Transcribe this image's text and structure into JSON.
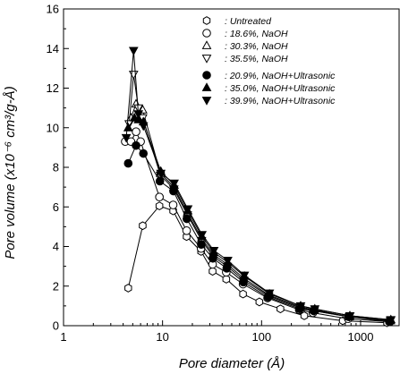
{
  "chart_data": {
    "type": "scatter",
    "xlabel": "Pore diameter (Å)",
    "ylabel": "Pore volume (x10⁻⁶ cm³/g-Å)",
    "xscale": "log",
    "xlim": [
      1,
      2500
    ],
    "ylim": [
      0,
      16
    ],
    "xticks": [
      1,
      10,
      100,
      1000
    ],
    "xtick_labels": [
      "1",
      "10",
      "100",
      "1000"
    ],
    "yticks": [
      0,
      2,
      4,
      6,
      8,
      10,
      12,
      14,
      16
    ],
    "ytick_labels": [
      "0",
      "2",
      "4",
      "6",
      "8",
      "10",
      "12",
      "14",
      "16"
    ],
    "grid": false,
    "legend_position": "top-right",
    "series": [
      {
        "name": ": Untreated",
        "marker": "hexagon-open",
        "x": [
          4.5,
          6.3,
          9.3,
          12.8,
          17.5,
          24.5,
          32,
          44,
          65,
          95,
          155,
          270,
          660,
          1850
        ],
        "y": [
          1.9,
          5.05,
          6.05,
          5.8,
          4.5,
          3.75,
          2.75,
          2.35,
          1.6,
          1.2,
          0.85,
          0.5,
          0.25,
          0.15
        ]
      },
      {
        "name": ": 18.6%, NaOH",
        "marker": "circle-open",
        "x": [
          4.2,
          4.8,
          5.4,
          6.0,
          9.3,
          12.8,
          17.5,
          24.5,
          32,
          44,
          65,
          115,
          240,
          330,
          750,
          1950
        ],
        "y": [
          9.3,
          9.3,
          9.8,
          9.3,
          6.5,
          6.1,
          4.8,
          3.9,
          3.1,
          2.7,
          2.1,
          1.4,
          0.8,
          0.65,
          0.35,
          0.2
        ]
      },
      {
        "name": ": 30.3%, NaOH",
        "marker": "triangle-up-open",
        "x": [
          4.8,
          5.4,
          6.3,
          9.5,
          13,
          17.8,
          24.8,
          32.5,
          45,
          66,
          118,
          245,
          340,
          770,
          2000
        ],
        "y": [
          10.5,
          11.2,
          10.9,
          7.7,
          7.0,
          5.7,
          4.4,
          3.6,
          3.1,
          2.4,
          1.55,
          0.95,
          0.8,
          0.45,
          0.25
        ]
      },
      {
        "name": ": 35.5%, NaOH",
        "marker": "triangle-down-open",
        "x": [
          4.6,
          5.1,
          5.7,
          6.3,
          9.5,
          13,
          17.8,
          24.8,
          32.5,
          45,
          66,
          118,
          245,
          340,
          770,
          2000
        ],
        "y": [
          10.2,
          12.7,
          11.0,
          10.5,
          7.6,
          6.9,
          5.6,
          4.3,
          3.5,
          3.0,
          2.3,
          1.5,
          0.9,
          0.75,
          0.45,
          0.25
        ]
      },
      {
        "name": ": 20.9%, NaOH+Ultrasonic",
        "marker": "circle-filled",
        "x": [
          4.5,
          5.4,
          6.4,
          9.4,
          12.9,
          17.6,
          24.6,
          32.2,
          44.5,
          65.5,
          116,
          242,
          335,
          760,
          1980
        ],
        "y": [
          8.2,
          9.1,
          8.7,
          7.3,
          6.8,
          5.4,
          4.1,
          3.4,
          2.9,
          2.2,
          1.45,
          0.85,
          0.75,
          0.45,
          0.2
        ]
      },
      {
        "name": ": 35.0%, NaOH+Ultrasonic",
        "marker": "triangle-up-filled",
        "x": [
          4.5,
          5.2,
          5.7,
          6.4,
          9.6,
          13.1,
          18,
          25,
          33,
          45.5,
          67,
          120,
          248,
          345,
          780,
          2020
        ],
        "y": [
          10.0,
          10.5,
          10.4,
          10.3,
          7.8,
          7.1,
          5.8,
          4.5,
          3.7,
          3.2,
          2.5,
          1.6,
          1.0,
          0.85,
          0.5,
          0.3
        ]
      },
      {
        "name": ": 39.9%, NaOH+Ultrasonic",
        "marker": "triangle-down-filled",
        "x": [
          4.3,
          5.1,
          5.7,
          6.4,
          9.6,
          13.1,
          18,
          25,
          33,
          45.5,
          67,
          120,
          248,
          345,
          780,
          2020
        ],
        "y": [
          9.5,
          13.9,
          10.7,
          10.1,
          7.7,
          7.2,
          5.9,
          4.6,
          3.8,
          3.3,
          2.55,
          1.65,
          1.0,
          0.85,
          0.5,
          0.3
        ]
      }
    ]
  }
}
